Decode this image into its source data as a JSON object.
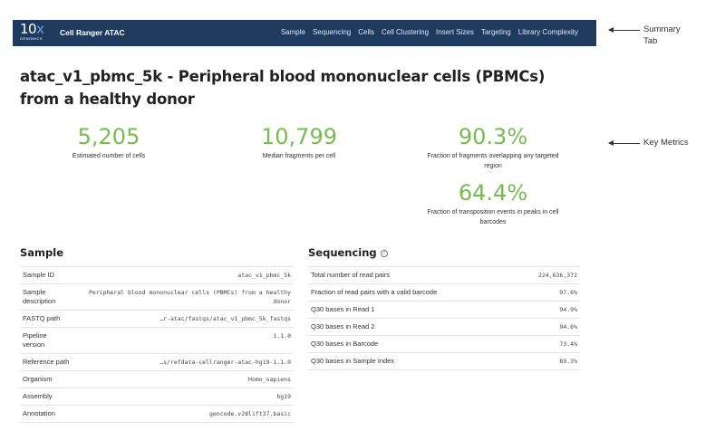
{
  "header": {
    "logo_main": "10",
    "logo_x": "x",
    "logo_sub": "GENOMICS",
    "app_title": "Cell Ranger ATAC",
    "nav": [
      "Sample",
      "Sequencing",
      "Cells",
      "Cell Clustering",
      "Insert Sizes",
      "Targeting",
      "Library Complexity"
    ]
  },
  "annotations": {
    "summary_tab_line1": "Summary",
    "summary_tab_line2": "Tab",
    "key_metrics": "Key Metrics"
  },
  "page_title": "atac_v1_pbmc_5k - Peripheral blood mononuclear cells (PBMCs) from a healthy donor",
  "metrics": [
    {
      "value": "5,205",
      "label": "Estimated number of cells"
    },
    {
      "value": "10,799",
      "label": "Median fragments per cell"
    },
    {
      "value": "90.3%",
      "label": "Fraction of fragments overlapping any targeted region"
    },
    {
      "value": "64.4%",
      "label": "Fraction of transposition events in peaks in cell barcodes"
    }
  ],
  "sample": {
    "heading": "Sample",
    "rows": [
      {
        "key": "Sample ID",
        "value": "atac_v1_pbmc_5k"
      },
      {
        "key": "Sample description",
        "value": "Peripheral blood mononuclear cells (PBMCs) from a healthy donor"
      },
      {
        "key": "FASTQ path",
        "value": "…r-atac/fastqs/atac_v1_pbmc_5k_fastqs"
      },
      {
        "key": "Pipeline version",
        "value": "1.1.0"
      },
      {
        "key": "Reference path",
        "value": "…s/refdata-cellranger-atac-hg19-1.1.0"
      },
      {
        "key": "Organism",
        "value": "Homo_sapiens"
      },
      {
        "key": "Assembly",
        "value": "hg19"
      },
      {
        "key": "Annotation",
        "value": "gencode.v28lift37.basic"
      }
    ]
  },
  "sequencing": {
    "heading": "Sequencing",
    "help_icon": "?",
    "rows": [
      {
        "key": "Total number of read pairs",
        "value": "224,636,372"
      },
      {
        "key": "Fraction of read pairs with a valid barcode",
        "value": "97.6%"
      },
      {
        "key": "Q30 bases in Read 1",
        "value": "94.9%"
      },
      {
        "key": "Q30 bases in Read 2",
        "value": "94.6%"
      },
      {
        "key": "Q30 bases in Barcode",
        "value": "73.4%"
      },
      {
        "key": "Q30 bases in Sample Index",
        "value": "89.3%"
      }
    ]
  }
}
